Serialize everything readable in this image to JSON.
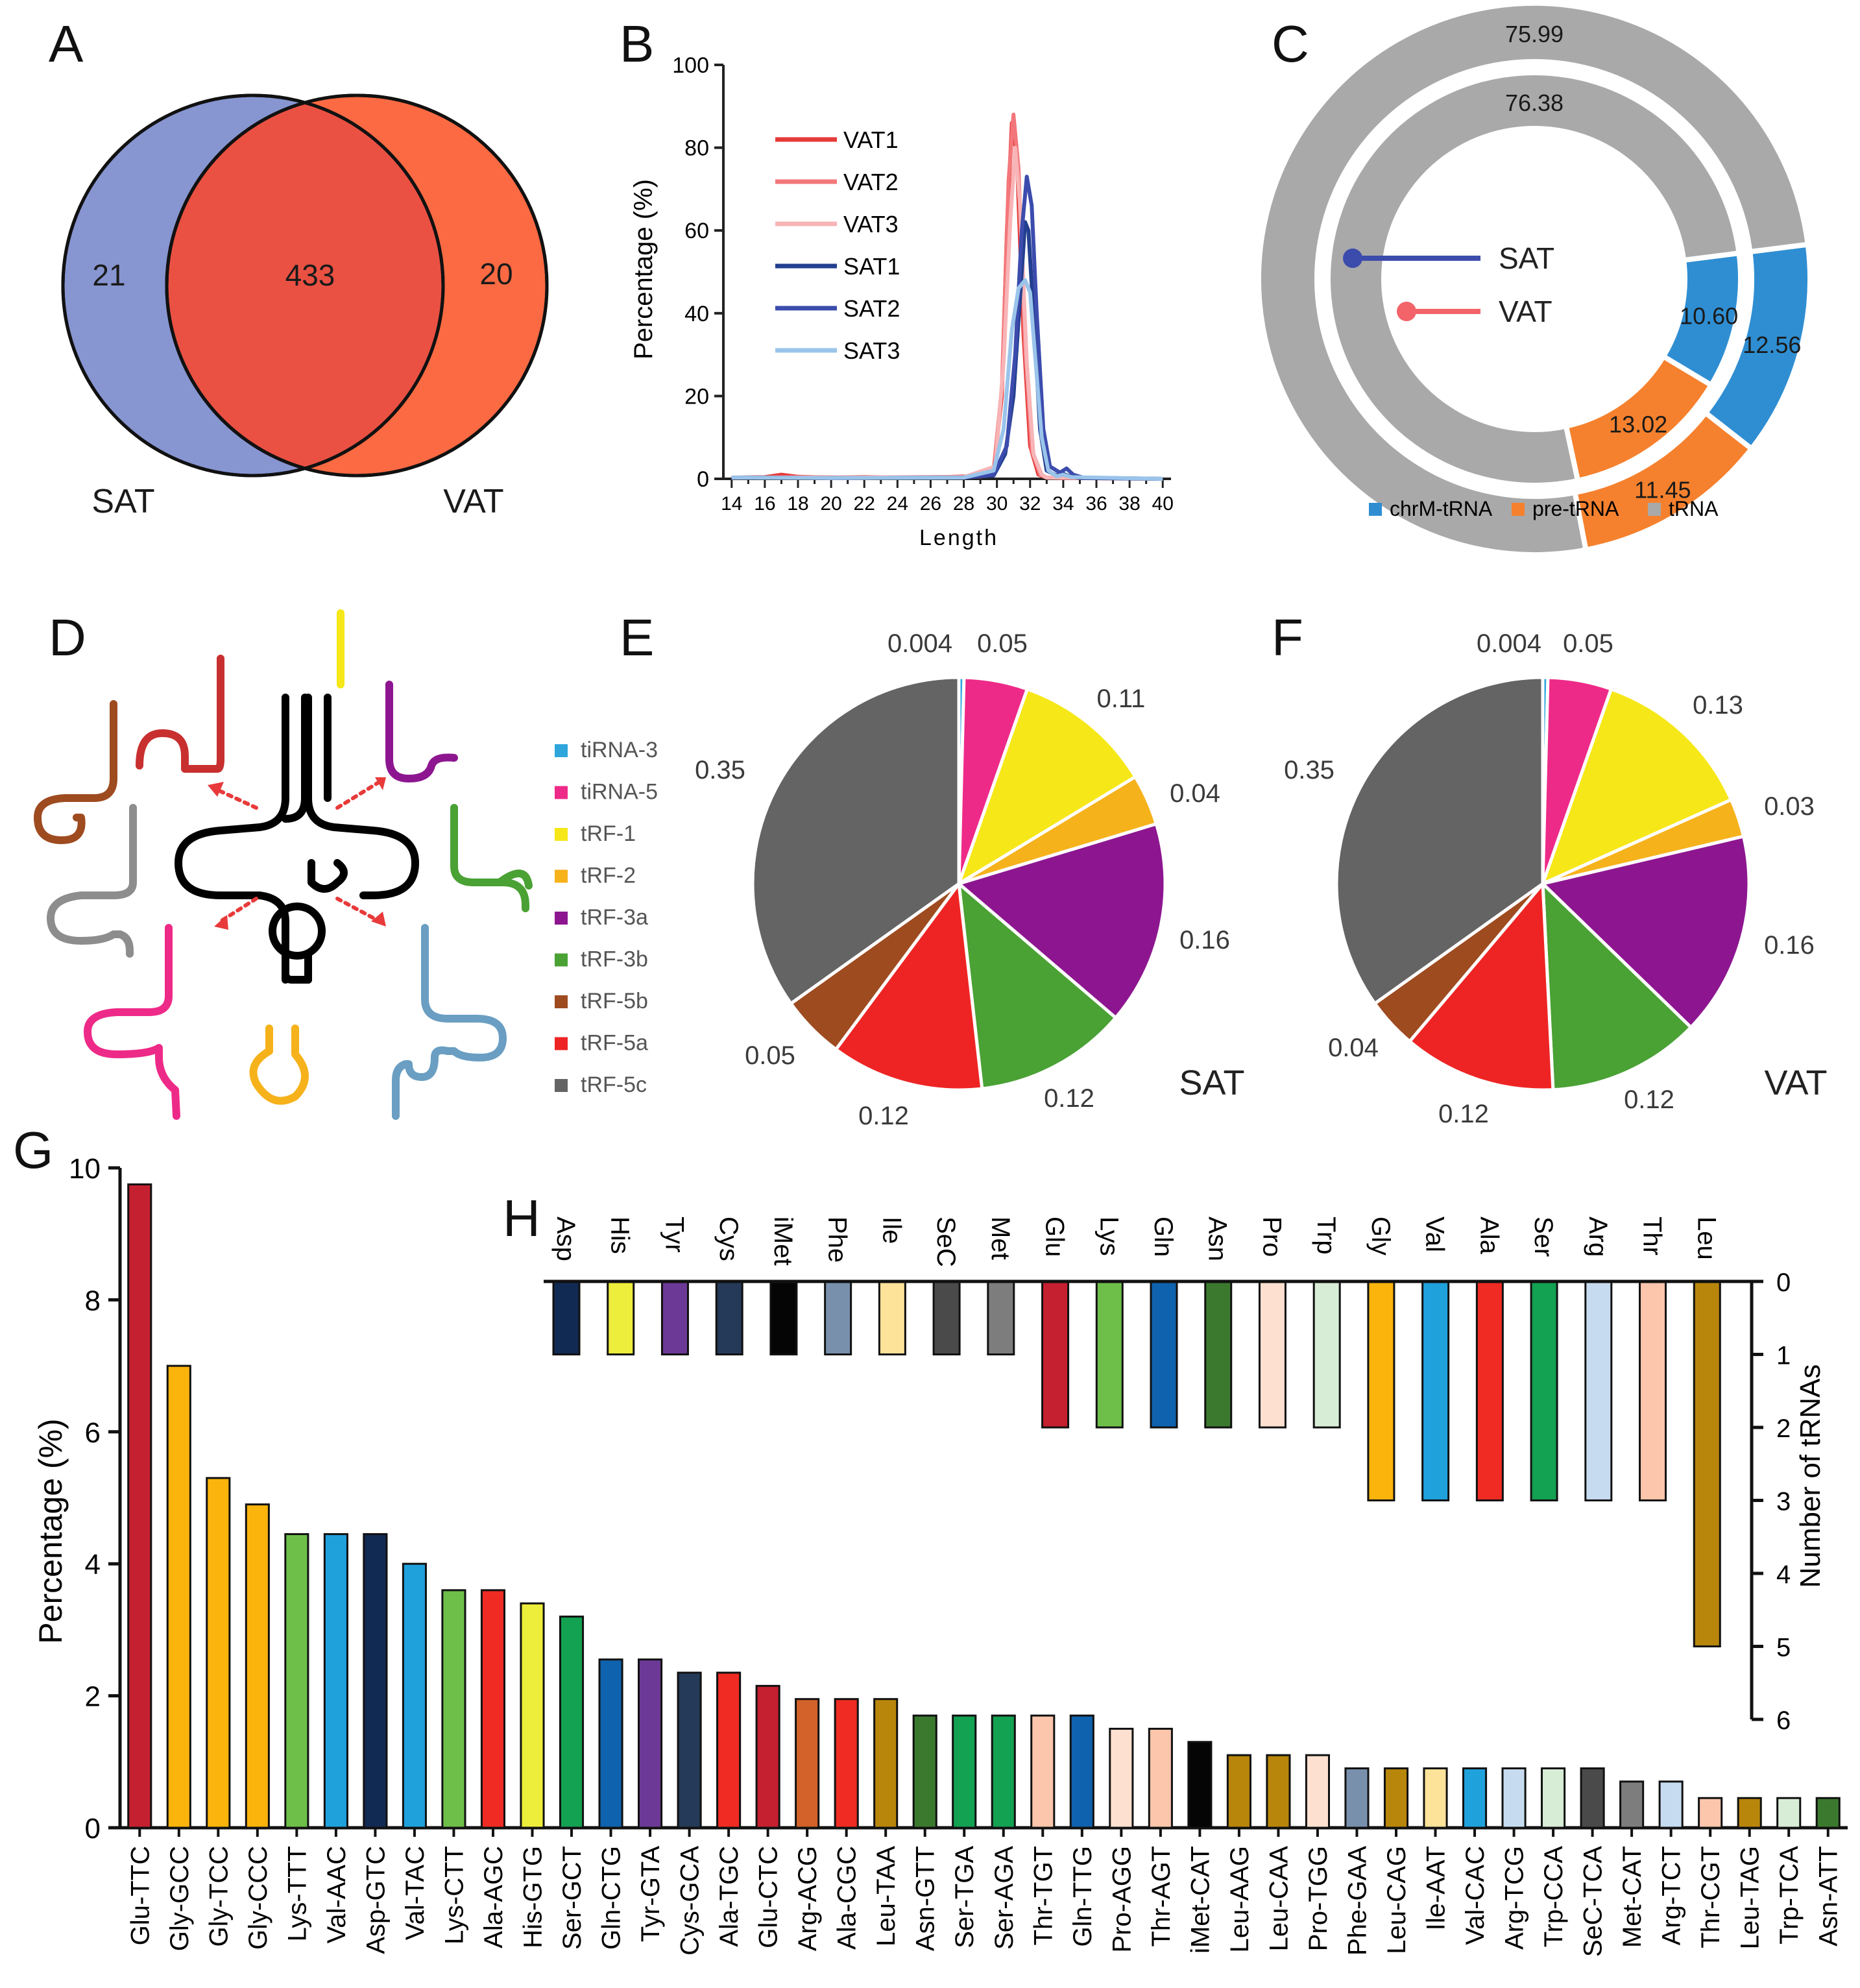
{
  "panels": {
    "A": "A",
    "B": "B",
    "C": "C",
    "D": "D",
    "E": "E",
    "F": "F",
    "G": "G",
    "H": "H"
  },
  "chart_data": [
    {
      "panel": "A",
      "type": "venn",
      "sets": [
        "SAT",
        "VAT"
      ],
      "only_left": "21",
      "overlap": "433",
      "only_right": "20",
      "colors": {
        "SAT": "#8795d1",
        "VAT": "#fb6a43",
        "overlap": "#ea5143"
      }
    },
    {
      "panel": "B",
      "type": "line",
      "xlabel": "Length",
      "ylabel": "Percentage (%)",
      "xlim": [
        13.5,
        40.5
      ],
      "ylim": [
        0,
        100
      ],
      "x_ticks": [
        "14",
        "16",
        "18",
        "20",
        "22",
        "24",
        "26",
        "28",
        "30",
        "32",
        "34",
        "36",
        "38",
        "40"
      ],
      "y_ticks": [
        "0",
        "20",
        "40",
        "60",
        "80",
        "100"
      ],
      "series": [
        {
          "name": "VAT1",
          "color": "#e53a38",
          "points": [
            [
              14,
              0.3
            ],
            [
              16,
              0.4
            ],
            [
              17,
              1
            ],
            [
              18,
              0.5
            ],
            [
              20,
              0.3
            ],
            [
              22,
              0.4
            ],
            [
              24,
              0.3
            ],
            [
              26,
              0.3
            ],
            [
              28,
              0.6
            ],
            [
              29,
              0.5
            ],
            [
              29.8,
              2
            ],
            [
              30.3,
              20
            ],
            [
              30.6,
              60
            ],
            [
              30.9,
              86
            ],
            [
              31.2,
              78
            ],
            [
              31.6,
              35
            ],
            [
              32,
              8
            ],
            [
              32.5,
              1
            ],
            [
              33,
              0.3
            ],
            [
              34,
              0.2
            ],
            [
              40,
              0
            ]
          ]
        },
        {
          "name": "VAT2",
          "color": "#f3777a",
          "points": [
            [
              14,
              0.3
            ],
            [
              18,
              0.4
            ],
            [
              22,
              0.3
            ],
            [
              28,
              0.5
            ],
            [
              29.8,
              2
            ],
            [
              30.3,
              22
            ],
            [
              30.7,
              72
            ],
            [
              31,
              88
            ],
            [
              31.3,
              75
            ],
            [
              31.7,
              32
            ],
            [
              32.1,
              7
            ],
            [
              32.6,
              1
            ],
            [
              33,
              0.3
            ],
            [
              40,
              0
            ]
          ]
        },
        {
          "name": "VAT3",
          "color": "#f8b4b6",
          "points": [
            [
              14,
              0.3
            ],
            [
              20,
              0.3
            ],
            [
              28,
              0.4
            ],
            [
              29.9,
              3
            ],
            [
              30.4,
              28
            ],
            [
              30.8,
              62
            ],
            [
              31.1,
              80
            ],
            [
              31.4,
              66
            ],
            [
              31.8,
              28
            ],
            [
              32.2,
              6
            ],
            [
              32.7,
              1
            ],
            [
              33,
              0.3
            ],
            [
              40,
              0
            ]
          ]
        },
        {
          "name": "SAT1",
          "color": "#233f8f",
          "points": [
            [
              14,
              0.3
            ],
            [
              20,
              0.2
            ],
            [
              28,
              0.3
            ],
            [
              29.8,
              0.8
            ],
            [
              30.5,
              6
            ],
            [
              31,
              20
            ],
            [
              31.4,
              44
            ],
            [
              31.7,
              62
            ],
            [
              31.9,
              60
            ],
            [
              32.2,
              40
            ],
            [
              32.6,
              12
            ],
            [
              33,
              2
            ],
            [
              33.6,
              0.8
            ],
            [
              34,
              1.2
            ],
            [
              34.4,
              0.6
            ],
            [
              35,
              0.2
            ],
            [
              40,
              0
            ]
          ]
        },
        {
          "name": "SAT2",
          "color": "#3c4cad",
          "points": [
            [
              14,
              0.3
            ],
            [
              20,
              0.2
            ],
            [
              28,
              0.3
            ],
            [
              29.8,
              1
            ],
            [
              30.6,
              8
            ],
            [
              31.1,
              30
            ],
            [
              31.5,
              60
            ],
            [
              31.8,
              73
            ],
            [
              32.1,
              66
            ],
            [
              32.4,
              40
            ],
            [
              32.8,
              12
            ],
            [
              33.2,
              3
            ],
            [
              33.8,
              1.5
            ],
            [
              34.2,
              2.5
            ],
            [
              34.6,
              1
            ],
            [
              35.2,
              0.3
            ],
            [
              40,
              0
            ]
          ]
        },
        {
          "name": "SAT3",
          "color": "#9ac4ea",
          "points": [
            [
              14,
              0.3
            ],
            [
              20,
              0.2
            ],
            [
              28,
              0.3
            ],
            [
              29.8,
              2
            ],
            [
              30.4,
              12
            ],
            [
              30.9,
              36
            ],
            [
              31.3,
              46
            ],
            [
              31.7,
              48
            ],
            [
              32,
              45
            ],
            [
              32.3,
              30
            ],
            [
              32.7,
              10
            ],
            [
              33.1,
              2
            ],
            [
              33.6,
              0.6
            ],
            [
              34,
              1
            ],
            [
              34.5,
              0.4
            ],
            [
              40,
              0
            ]
          ]
        }
      ]
    },
    {
      "panel": "C",
      "type": "donut",
      "legend": [
        {
          "label": "chrM-tRNA",
          "color": "#2f8ed2"
        },
        {
          "label": "pre-tRNA",
          "color": "#f5812e"
        },
        {
          "label": "tRNA",
          "color": "#a9a9a9"
        }
      ],
      "rings": [
        {
          "name": "SAT",
          "line_color": "#3c4cad",
          "values": [
            12.56,
            11.45,
            75.99
          ],
          "labels": [
            "12.56",
            "11.45",
            "75.99"
          ]
        },
        {
          "name": "VAT",
          "line_color": "#f3636a",
          "values": [
            10.6,
            13.02,
            76.38
          ],
          "labels": [
            "10.60",
            "13.02",
            "76.38"
          ]
        }
      ]
    },
    {
      "panel": "D",
      "type": "legend",
      "items": [
        {
          "label": "tiRNA-3",
          "color": "#2ea6dc"
        },
        {
          "label": "tiRNA-5",
          "color": "#ee2a88"
        },
        {
          "label": "tRF-1",
          "color": "#f6e718"
        },
        {
          "label": "tRF-2",
          "color": "#f6b21b"
        },
        {
          "label": "tRF-3a",
          "color": "#8d1690"
        },
        {
          "label": "tRF-3b",
          "color": "#4aa134"
        },
        {
          "label": "tRF-5b",
          "color": "#9e4b20"
        },
        {
          "label": "tRF-5a",
          "color": "#ee2424"
        },
        {
          "label": "tRF-5c",
          "color": "#646464"
        }
      ]
    },
    {
      "panel": "E",
      "type": "pie",
      "name": "SAT",
      "slices": [
        {
          "label": "tiRNA-3",
          "value": 0.004,
          "text": "0.004",
          "color": "#2ea6dc"
        },
        {
          "label": "tiRNA-5",
          "value": 0.05,
          "text": "0.05",
          "color": "#ee2a88"
        },
        {
          "label": "tRF-1",
          "value": 0.11,
          "text": "0.11",
          "color": "#f6e718"
        },
        {
          "label": "tRF-2",
          "value": 0.04,
          "text": "0.04",
          "color": "#f6b21b"
        },
        {
          "label": "tRF-3a",
          "value": 0.16,
          "text": "0.16",
          "color": "#8d1690"
        },
        {
          "label": "tRF-3b",
          "value": 0.12,
          "text": "0.12",
          "color": "#4aa134"
        },
        {
          "label": "tRF-5a",
          "value": 0.12,
          "text": "0.12",
          "color": "#ee2424"
        },
        {
          "label": "tRF-5b",
          "value": 0.05,
          "text": "0.05",
          "color": "#9e4b20"
        },
        {
          "label": "tRF-5c",
          "value": 0.35,
          "text": "0.35",
          "color": "#646464"
        }
      ]
    },
    {
      "panel": "F",
      "type": "pie",
      "name": "VAT",
      "slices": [
        {
          "label": "tiRNA-3",
          "value": 0.004,
          "text": "0.004",
          "color": "#2ea6dc"
        },
        {
          "label": "tiRNA-5",
          "value": 0.05,
          "text": "0.05",
          "color": "#ee2a88"
        },
        {
          "label": "tRF-1",
          "value": 0.13,
          "text": "0.13",
          "color": "#f6e718"
        },
        {
          "label": "tRF-2",
          "value": 0.03,
          "text": "0.03",
          "color": "#f6b21b"
        },
        {
          "label": "tRF-3a",
          "value": 0.16,
          "text": "0.16",
          "color": "#8d1690"
        },
        {
          "label": "tRF-3b",
          "value": 0.12,
          "text": "0.12",
          "color": "#4aa134"
        },
        {
          "label": "tRF-5a",
          "value": 0.12,
          "text": "0.12",
          "color": "#ee2424"
        },
        {
          "label": "tRF-5b",
          "value": 0.04,
          "text": "0.04",
          "color": "#9e4b20"
        },
        {
          "label": "tRF-5c",
          "value": 0.35,
          "text": "0.35",
          "color": "#646464"
        }
      ]
    },
    {
      "panel": "G",
      "type": "bar",
      "ylabel": "Percentage (%)",
      "ylim": [
        0,
        10
      ],
      "y_ticks": [
        "0",
        "2",
        "4",
        "6",
        "8",
        "10"
      ],
      "bars": [
        {
          "label": "Glu-TTC",
          "value": 9.75,
          "color": "#c52030"
        },
        {
          "label": "Gly-GCC",
          "value": 7.0,
          "color": "#fbb40c"
        },
        {
          "label": "Gly-TCC",
          "value": 5.3,
          "color": "#fbb40c"
        },
        {
          "label": "Gly-CCC",
          "value": 4.9,
          "color": "#fbb40c"
        },
        {
          "label": "Lys-TTT",
          "value": 4.45,
          "color": "#6ebf4a"
        },
        {
          "label": "Val-AAC",
          "value": 4.45,
          "color": "#1fa1dc"
        },
        {
          "label": "Asp-GTC",
          "value": 4.45,
          "color": "#112a53"
        },
        {
          "label": "Val-TAC",
          "value": 4.0,
          "color": "#1fa1dc"
        },
        {
          "label": "Lys-CTT",
          "value": 3.6,
          "color": "#6ebf4a"
        },
        {
          "label": "Ala-AGC",
          "value": 3.6,
          "color": "#ef2b24"
        },
        {
          "label": "His-GTG",
          "value": 3.4,
          "color": "#eded3b"
        },
        {
          "label": "Ser-GCT",
          "value": 3.2,
          "color": "#13a152"
        },
        {
          "label": "Gln-CTG",
          "value": 2.55,
          "color": "#0f62ae"
        },
        {
          "label": "Tyr-GTA",
          "value": 2.55,
          "color": "#6c3a96"
        },
        {
          "label": "Cys-GCA",
          "value": 2.35,
          "color": "#243a58"
        },
        {
          "label": "Ala-TGC",
          "value": 2.35,
          "color": "#ef2b24"
        },
        {
          "label": "Glu-CTC",
          "value": 2.15,
          "color": "#c52030"
        },
        {
          "label": "Arg-ACG",
          "value": 1.95,
          "color": "#d2612a"
        },
        {
          "label": "Ala-CGC",
          "value": 1.95,
          "color": "#ef2b24"
        },
        {
          "label": "Leu-TAA",
          "value": 1.95,
          "color": "#b8860b"
        },
        {
          "label": "Asn-GTT",
          "value": 1.7,
          "color": "#3b7a2e"
        },
        {
          "label": "Ser-TGA",
          "value": 1.7,
          "color": "#13a152"
        },
        {
          "label": "Ser-AGA",
          "value": 1.7,
          "color": "#13a152"
        },
        {
          "label": "Thr-TGT",
          "value": 1.7,
          "color": "#fbc6ac"
        },
        {
          "label": "Gln-TTG",
          "value": 1.7,
          "color": "#0f62ae"
        },
        {
          "label": "Pro-AGG",
          "value": 1.5,
          "color": "#fde0d0"
        },
        {
          "label": "Thr-AGT",
          "value": 1.5,
          "color": "#fbc6ac"
        },
        {
          "label": "iMet-CAT",
          "value": 1.3,
          "color": "#050505"
        },
        {
          "label": "Leu-AAG",
          "value": 1.1,
          "color": "#b8860b"
        },
        {
          "label": "Leu-CAA",
          "value": 1.1,
          "color": "#b8860b"
        },
        {
          "label": "Pro-TGG",
          "value": 1.1,
          "color": "#fde0d0"
        },
        {
          "label": "Phe-GAA",
          "value": 0.9,
          "color": "#7890ac"
        },
        {
          "label": "Leu-CAG",
          "value": 0.9,
          "color": "#b8860b"
        },
        {
          "label": "Ile-AAT",
          "value": 0.9,
          "color": "#fde29a"
        },
        {
          "label": "Val-CAC",
          "value": 0.9,
          "color": "#1fa1dc"
        },
        {
          "label": "Arg-TCG",
          "value": 0.9,
          "color": "#c7dbf0"
        },
        {
          "label": "Trp-CCA",
          "value": 0.9,
          "color": "#d8edd6"
        },
        {
          "label": "SeC-TCA",
          "value": 0.9,
          "color": "#4a4a4a"
        },
        {
          "label": "Met-CAT",
          "value": 0.7,
          "color": "#7d7d7d"
        },
        {
          "label": "Arg-TCT",
          "value": 0.7,
          "color": "#c7dbf0"
        },
        {
          "label": "Thr-CGT",
          "value": 0.45,
          "color": "#fbc6ac"
        },
        {
          "label": "Leu-TAG",
          "value": 0.45,
          "color": "#b8860b"
        },
        {
          "label": "Trp-TCA",
          "value": 0.45,
          "color": "#d8edd6"
        },
        {
          "label": "Asn-ATT",
          "value": 0.45,
          "color": "#3b7a2e"
        }
      ]
    },
    {
      "panel": "H",
      "type": "bar",
      "orientation": "inverted",
      "ylabel": "Number of tRNAs",
      "ylim": [
        0,
        6
      ],
      "y_ticks": [
        "0",
        "1",
        "2",
        "3",
        "4",
        "5",
        "6"
      ],
      "bars": [
        {
          "label": "Asp",
          "value": 1,
          "color": "#112a53"
        },
        {
          "label": "His",
          "value": 1,
          "color": "#eded3b"
        },
        {
          "label": "Tyr",
          "value": 1,
          "color": "#6c3a96"
        },
        {
          "label": "Cys",
          "value": 1,
          "color": "#243a58"
        },
        {
          "label": "iMet",
          "value": 1,
          "color": "#050505"
        },
        {
          "label": "Phe",
          "value": 1,
          "color": "#7890ac"
        },
        {
          "label": "Ile",
          "value": 1,
          "color": "#fde29a"
        },
        {
          "label": "SeC",
          "value": 1,
          "color": "#4a4a4a"
        },
        {
          "label": "Met",
          "value": 1,
          "color": "#7d7d7d"
        },
        {
          "label": "Glu",
          "value": 2,
          "color": "#c52030"
        },
        {
          "label": "Lys",
          "value": 2,
          "color": "#6ebf4a"
        },
        {
          "label": "Gln",
          "value": 2,
          "color": "#0f62ae"
        },
        {
          "label": "Asn",
          "value": 2,
          "color": "#3b7a2e"
        },
        {
          "label": "Pro",
          "value": 2,
          "color": "#fde0d0"
        },
        {
          "label": "Trp",
          "value": 2,
          "color": "#d8edd6"
        },
        {
          "label": "Gly",
          "value": 3,
          "color": "#fbb40c"
        },
        {
          "label": "Val",
          "value": 3,
          "color": "#1fa1dc"
        },
        {
          "label": "Ala",
          "value": 3,
          "color": "#ef2b24"
        },
        {
          "label": "Ser",
          "value": 3,
          "color": "#13a152"
        },
        {
          "label": "Arg",
          "value": 3,
          "color": "#c7dbf0"
        },
        {
          "label": "Thr",
          "value": 3,
          "color": "#fbc6ac"
        },
        {
          "label": "Leu",
          "value": 5,
          "color": "#b8860b"
        }
      ]
    }
  ]
}
